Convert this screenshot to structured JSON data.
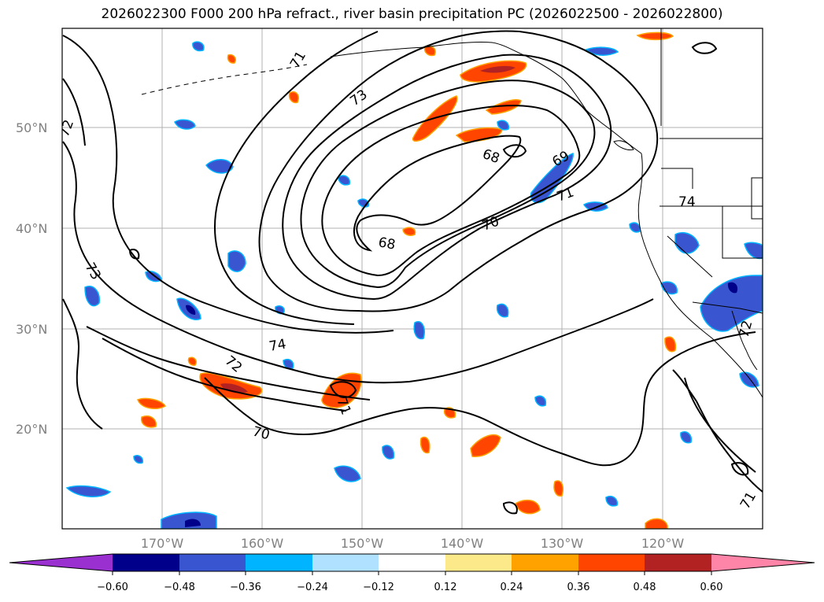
{
  "title": "2026022300 F000 200 hPa refract., river basin precipitation PC (2026022500 - 2026022800)",
  "map": {
    "latitude_labels": [
      "50°N",
      "40°N",
      "30°N",
      "20°N"
    ],
    "longitude_labels": [
      "170°W",
      "160°W",
      "150°W",
      "140°W",
      "130°W",
      "120°W"
    ],
    "contour_labels": [
      "72",
      "71",
      "73",
      "68",
      "69",
      "71",
      "70",
      "68",
      "73",
      "74",
      "72",
      "70",
      "71",
      "72",
      "71",
      "74"
    ]
  },
  "colorbar": {
    "colors": [
      "#9a30d0",
      "#00008b",
      "#3a55d0",
      "#00b4ff",
      "#b0e2ff",
      "#ffffff",
      "#fce98a",
      "#ffa200",
      "#ff4500",
      "#b22222",
      "#ff85a8"
    ],
    "tick_labels": [
      "−0.60",
      "−0.48",
      "−0.36",
      "−0.24",
      "−0.12",
      "0.12",
      "0.24",
      "0.36",
      "0.48",
      "0.60"
    ]
  },
  "style": {
    "positive_fill": "#ff4500",
    "positive_edge": "#ffa200",
    "negative_fill": "#3a55d0",
    "negative_edge": "#00b4ff",
    "grid_color": "#b0b0b0"
  }
}
